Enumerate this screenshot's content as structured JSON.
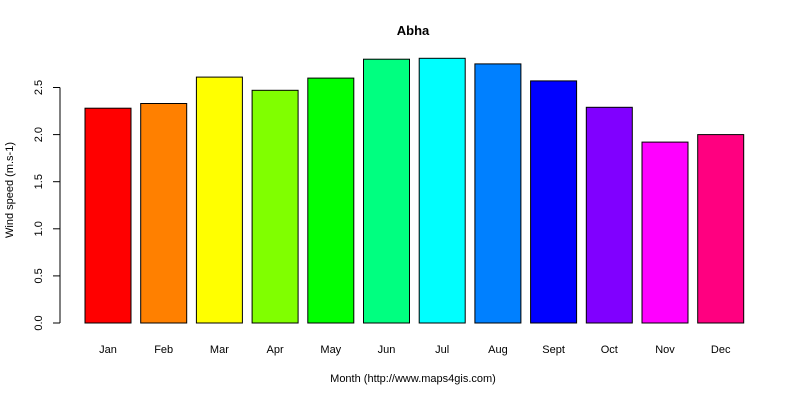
{
  "chart_data": {
    "type": "bar",
    "title": "Abha",
    "xlabel": "Month (http://www.maps4gis.com)",
    "ylabel": "Wind speed (m.s-1)",
    "categories": [
      "Jan",
      "Feb",
      "Mar",
      "Apr",
      "May",
      "Jun",
      "Jul",
      "Aug",
      "Sept",
      "Oct",
      "Nov",
      "Dec"
    ],
    "values": [
      2.28,
      2.33,
      2.61,
      2.47,
      2.6,
      2.8,
      2.81,
      2.75,
      2.57,
      2.29,
      1.92,
      2.0
    ],
    "colors": [
      "#ff0000",
      "#ff8000",
      "#ffff00",
      "#80ff00",
      "#00ff00",
      "#00ff80",
      "#00ffff",
      "#0080ff",
      "#0000ff",
      "#8000ff",
      "#ff00ff",
      "#ff0080"
    ],
    "yticks": [
      "0.0",
      "0.5",
      "1.0",
      "1.5",
      "2.0",
      "2.5"
    ],
    "ylim": [
      0,
      2.8
    ],
    "grid": false,
    "legend": "none"
  }
}
